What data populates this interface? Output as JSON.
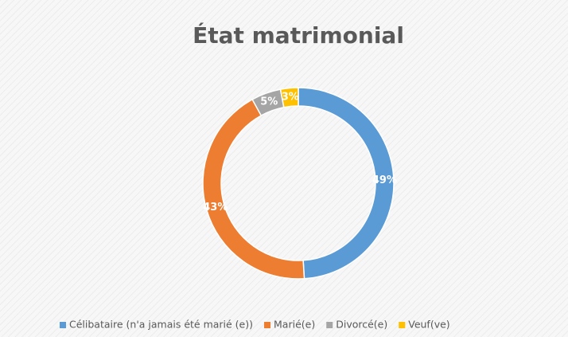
{
  "chart_data": {
    "type": "donut",
    "title": "État matrimonial",
    "categories": [
      "Célibataire (n'a jamais été marié (e))",
      "Marié(e)",
      "Divorcé(e)",
      "Veuf(ve)"
    ],
    "values": [
      49,
      43,
      5,
      3
    ],
    "value_labels": [
      "49%",
      "43%",
      "5%",
      "3%"
    ],
    "colors": [
      "#5b9bd5",
      "#ed7d31",
      "#a5a5a5",
      "#ffc000"
    ],
    "legend": "bottom"
  }
}
